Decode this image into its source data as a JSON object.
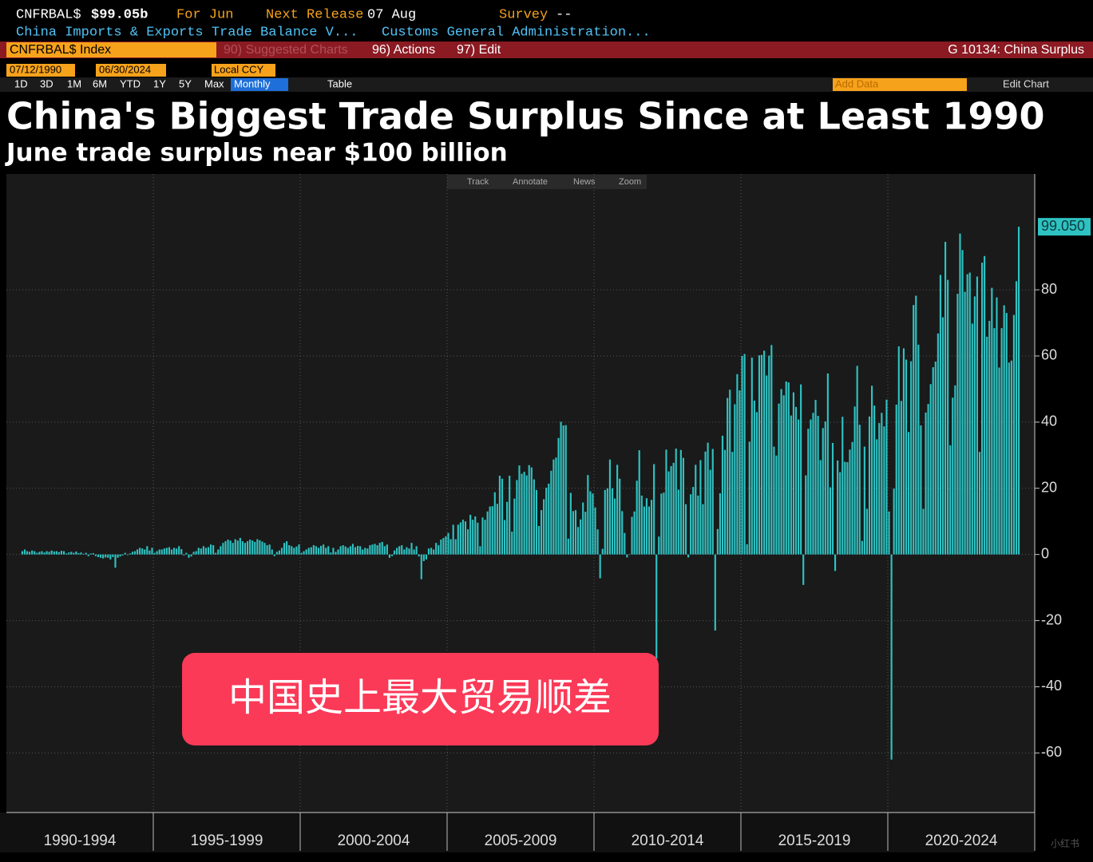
{
  "header": {
    "ticker": "CNFRBAL$",
    "price": "$99.05b",
    "period": "For Jun",
    "next_release_label": "Next Release",
    "next_release": "07 Aug",
    "survey_label": "Survey",
    "survey": "--",
    "description": "China Imports & Exports Trade Balance V...",
    "source": "Customs General Administration..."
  },
  "toolbar": {
    "security": "CNFRBAL$ Index",
    "suggested": "90) Suggested Charts",
    "actions": "96) Actions",
    "edit": "97) Edit",
    "chart_name": "G 10134: China Surplus",
    "start_date": "07/12/1990",
    "end_date": "06/30/2024",
    "currency": "Local CCY",
    "ranges": [
      "1D",
      "3D",
      "1M",
      "6M",
      "YTD",
      "1Y",
      "5Y",
      "Max"
    ],
    "frequency": "Monthly",
    "table": "Table",
    "add_data": "Add Data",
    "edit_chart": "Edit Chart"
  },
  "chart_tools": [
    "Track",
    "Annotate",
    "News",
    "Zoom"
  ],
  "chart_data": {
    "type": "bar",
    "title": "China's Biggest Trade Surplus Since at Least 1990",
    "subtitle": "June trade surplus near $100 billion",
    "color": "#2fc2c2",
    "grid": true,
    "ylim": [
      -78,
      115
    ],
    "yticks": [
      -60,
      -40,
      -20,
      0,
      20,
      40,
      60,
      80
    ],
    "periods": [
      {
        "label": "1990-1994",
        "values": [
          1,
          1.5,
          1,
          0.8,
          1.2,
          1,
          0.5,
          0.8,
          1,
          0.6,
          1,
          0.8,
          1.2,
          0.9,
          1,
          0.7,
          1.1,
          1,
          0.3,
          0.6,
          0.8,
          0.5,
          0.9,
          0.4,
          0.6,
          0.2,
          0.5,
          -0.5,
          0.3,
          0.4,
          -0.5,
          -0.8,
          -1,
          -1.2,
          -0.9,
          -1,
          -1.5,
          -0.8,
          -4,
          -1,
          -0.6,
          -0.3,
          0.5,
          -0.2,
          0.3,
          0.8,
          1,
          1.5,
          2,
          1.8,
          1.5,
          2.5,
          1.2,
          2
        ]
      },
      {
        "label": "1995-1999",
        "values": [
          0.5,
          1,
          1.5,
          1.5,
          1.8,
          2,
          2.2,
          1.5,
          2,
          1.8,
          2.5,
          1.6,
          -0.3,
          0.5,
          -1,
          -0.6,
          0.8,
          1,
          2,
          1.8,
          2.5,
          2,
          2.2,
          3,
          2.8,
          0.5,
          1.5,
          2.5,
          3.5,
          4,
          4.5,
          4.2,
          3.5,
          4.6,
          4.2,
          5,
          4,
          3.5,
          4,
          4.5,
          4.2,
          3.8,
          4.6,
          4.3,
          3.9,
          3.5,
          2.8,
          3,
          1.5,
          -0.5,
          0.8,
          1.2,
          2,
          3.5,
          4,
          2.8,
          2.5,
          2,
          2.4,
          3
        ]
      },
      {
        "label": "2000-2004",
        "values": [
          0.5,
          1,
          1.5,
          2,
          2.2,
          2.8,
          2.5,
          2,
          2.6,
          3,
          2,
          2.5,
          0.6,
          2,
          0.8,
          1.5,
          2.5,
          2.8,
          2.4,
          2,
          2.5,
          3.2,
          2.2,
          2.6,
          2.5,
          1.5,
          2,
          1.8,
          2.8,
          3,
          3.2,
          2.8,
          3.5,
          3.8,
          2.5,
          3,
          -1,
          -0.5,
          1.2,
          2,
          2.5,
          2.8,
          1.5,
          2.2,
          1.8,
          3.5,
          1.5,
          2.5,
          -0.6,
          -7.5,
          -2,
          -1.5,
          1.8,
          2,
          1.5,
          3.5,
          2.8,
          4.5,
          5,
          5.5
        ]
      },
      {
        "label": "2005-2009",
        "values": [
          6.5,
          4.6,
          9,
          4.6,
          9,
          9.7,
          10.5,
          10,
          7.6,
          12,
          10.5,
          11.5,
          9.6,
          2.5,
          11.2,
          10.5,
          13,
          14.5,
          14.6,
          18.8,
          15.3,
          23.8,
          22.9,
          10.4,
          15.9,
          23.8,
          6.9,
          16.9,
          22.5,
          26.9,
          24.4,
          25,
          23.9,
          27,
          26.3,
          22.7,
          19.5,
          8.6,
          13.4,
          16.7,
          20.2,
          21.4,
          25.3,
          28.7,
          29.3,
          35.2,
          40.1,
          39,
          39.1,
          4.8,
          18.6,
          13.1,
          13.4,
          8.3,
          10.6,
          15.7,
          12.9,
          24,
          19.1,
          18.4
        ]
      },
      {
        "label": "2010-2014",
        "values": [
          14.2,
          7.6,
          -7.2,
          1.7,
          19.5,
          20,
          28.7,
          20,
          16.9,
          27.1,
          22.9,
          13.1,
          6.5,
          -0.9,
          0.1,
          11.4,
          13,
          22.3,
          31.5,
          17.8,
          14.5,
          17,
          14.5,
          16.5,
          27.3,
          -31.5,
          5.4,
          18.4,
          18.7,
          31.7,
          25.1,
          26.7,
          27.7,
          32,
          19.6,
          31.6,
          29.2,
          15.2,
          -0.9,
          18.2,
          20.4,
          27.1,
          17.8,
          28.5,
          15.2,
          31.1,
          33.8,
          25.6,
          31.9,
          -23,
          7.7,
          18.5,
          35.9,
          31.6,
          47.3,
          49.8,
          31,
          45.4,
          54.5,
          49.6
        ]
      },
      {
        "label": "2015-2019",
        "values": [
          60,
          60.6,
          3.1,
          34.1,
          59.5,
          46.5,
          43,
          60.2,
          60.3,
          61.6,
          54.1,
          60.1,
          63.3,
          32.6,
          29.9,
          45.6,
          50,
          48.1,
          52.3,
          52,
          42,
          49,
          44.6,
          40.8,
          51.4,
          -9.2,
          23.9,
          38,
          40.8,
          42.8,
          46.7,
          41.9,
          28.5,
          38.2,
          40.2,
          54.7,
          20.3,
          33.7,
          -5,
          28.4,
          24.9,
          41.6,
          28,
          27.9,
          31.7,
          34,
          44.7,
          57,
          39.2,
          4.1,
          32.6,
          13.8,
          41.7,
          51,
          45,
          34.8,
          39.7,
          42.8,
          38.7,
          46.8
        ]
      },
      {
        "label": "2020-2024",
        "values": [
          13,
          -62,
          19.9,
          45.3,
          62.9,
          46.4,
          62.3,
          58.9,
          37,
          58.4,
          75.4,
          78.2,
          63.4,
          39,
          13.8,
          42.9,
          45.5,
          51.5,
          56.6,
          58.3,
          66.8,
          84.5,
          71.7,
          94.5,
          83,
          33,
          47.4,
          51.1,
          78.8,
          97,
          92,
          79.4,
          84.7,
          85.2,
          69.8,
          78,
          84,
          31,
          88.2,
          90.2,
          65.8,
          70.6,
          80.6,
          68.4,
          77.7,
          56.5,
          68.4,
          75.3,
          73,
          58,
          58.6,
          72.4,
          82.6,
          99.05
        ],
        "value_labels": [
          null,
          null,
          null,
          null,
          null,
          null,
          null,
          null,
          null,
          null,
          null,
          null,
          null,
          null,
          null,
          null,
          null,
          null,
          null,
          null,
          null,
          null,
          null,
          null,
          null,
          null,
          null,
          null,
          null,
          null,
          null,
          null,
          null,
          null,
          null,
          null,
          null,
          null,
          null,
          null,
          null,
          null,
          null,
          null,
          null,
          null,
          null,
          null,
          null,
          null,
          null,
          null,
          null,
          "99.050"
        ]
      }
    ]
  },
  "overlay": "中国史上最大贸易顺差",
  "watermark": "小红书"
}
